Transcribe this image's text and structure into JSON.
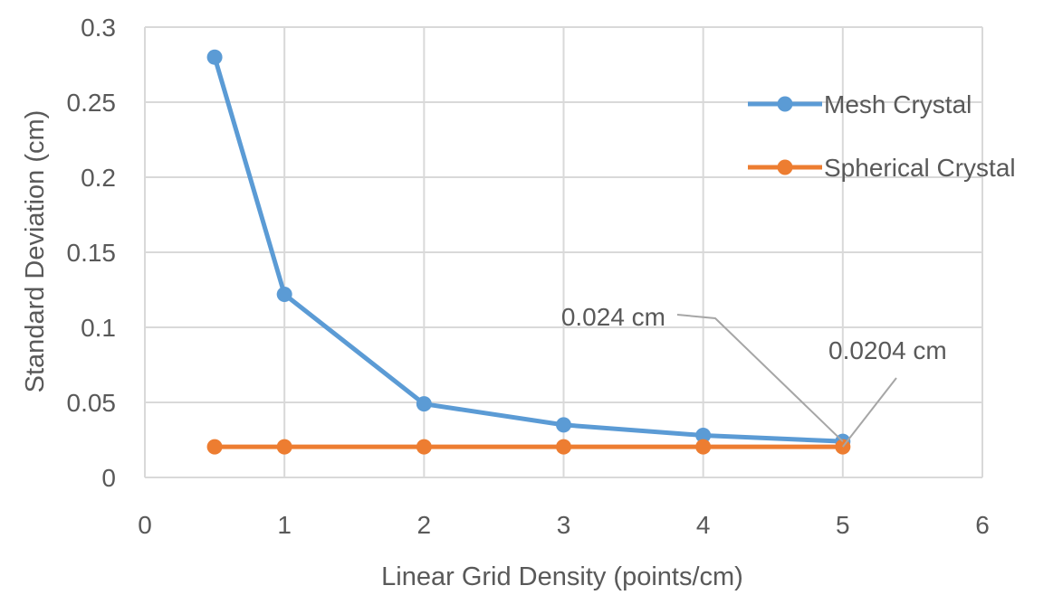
{
  "chart_data": {
    "type": "line",
    "xlabel": "Linear Grid Density (points/cm)",
    "ylabel": "Standard Deviation (cm)",
    "xlim": [
      0,
      6
    ],
    "ylim": [
      0,
      0.3
    ],
    "x_ticks": [
      "0",
      "1",
      "2",
      "3",
      "4",
      "5",
      "6"
    ],
    "y_ticks": [
      "0",
      "0.05",
      "0.1",
      "0.15",
      "0.2",
      "0.25",
      "0.3"
    ],
    "grid": true,
    "legend_position": "right",
    "series": [
      {
        "name": "Mesh Crystal",
        "color": "#5B9BD5",
        "x": [
          0.5,
          1,
          2,
          3,
          4,
          5
        ],
        "y": [
          0.28,
          0.122,
          0.049,
          0.035,
          0.028,
          0.024
        ]
      },
      {
        "name": "Spherical Crystal",
        "color": "#ED7D31",
        "x": [
          0.5,
          1,
          2,
          3,
          4,
          5
        ],
        "y": [
          0.0204,
          0.0204,
          0.0204,
          0.0204,
          0.0204,
          0.0204
        ]
      }
    ],
    "annotations": [
      {
        "text": "0.024 cm",
        "x": 5,
        "y": 0.024
      },
      {
        "text": "0.0204 cm",
        "x": 5,
        "y": 0.0204
      }
    ]
  }
}
